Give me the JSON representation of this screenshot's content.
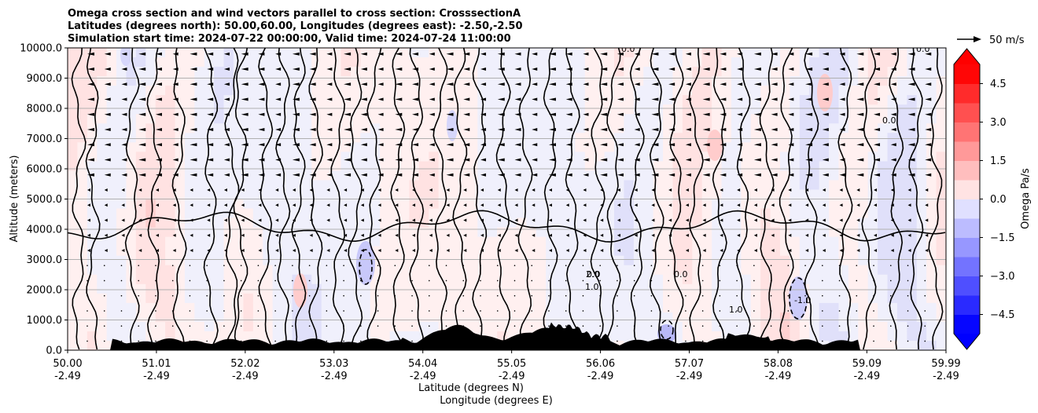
{
  "chart_data": {
    "type": "contourf",
    "title_lines": [
      "Omega cross section and wind vectors parallel to cross section: CrosssectionA",
      "Latitudes (degrees north): 50.00,60.00, Longitudes (degrees east): -2.50,-2.50",
      "Simulation start time: 2024-07-22 00:00:00, Valid time: 2024-07-24 11:00:00"
    ],
    "ylabel": "Altitude (meters)",
    "xlabel_line1": "Latitude (degrees N)",
    "xlabel_line2": "Longitude (degrees E)",
    "ylim": [
      0,
      10000
    ],
    "yticks": [
      "0.0",
      "1000.0",
      "2000.0",
      "3000.0",
      "4000.0",
      "5000.0",
      "6000.0",
      "7000.0",
      "8000.0",
      "9000.0",
      "10000.0"
    ],
    "xlim": [
      50.0,
      59.99
    ],
    "xticks": [
      {
        "lat": "50.00",
        "lon": "-2.49"
      },
      {
        "lat": "51.01",
        "lon": "-2.49"
      },
      {
        "lat": "52.02",
        "lon": "-2.49"
      },
      {
        "lat": "53.03",
        "lon": "-2.49"
      },
      {
        "lat": "54.04",
        "lon": "-2.49"
      },
      {
        "lat": "55.05",
        "lon": "-2.49"
      },
      {
        "lat": "56.06",
        "lon": "-2.49"
      },
      {
        "lat": "57.07",
        "lon": "-2.49"
      },
      {
        "lat": "58.08",
        "lon": "-2.49"
      },
      {
        "lat": "59.09",
        "lon": "-2.49"
      },
      {
        "lat": "59.99",
        "lon": "-2.49"
      }
    ],
    "quiver_key_label": "50 m/s",
    "colorbar": {
      "label": "Omega Pa/s",
      "range": [
        -5.25,
        5.25
      ],
      "ticks": [
        "4.5",
        "3.0",
        "1.5",
        "0.0",
        "−1.5",
        "−3.0",
        "−4.5"
      ],
      "tick_values": [
        4.5,
        3.0,
        1.5,
        0.0,
        -1.5,
        -3.0,
        -4.5
      ],
      "extend": "both"
    },
    "contour_labels": [
      "0.0",
      "1.0",
      "2.0",
      "-1.0",
      "1.0",
      "0.0"
    ],
    "contour_levels": [
      -1.0,
      0.0,
      1.0,
      2.0
    ],
    "colors": {
      "positive": "#ff0000",
      "negative": "#0000ff",
      "terrain": "#000000",
      "grid": "#b0b0b0"
    }
  }
}
